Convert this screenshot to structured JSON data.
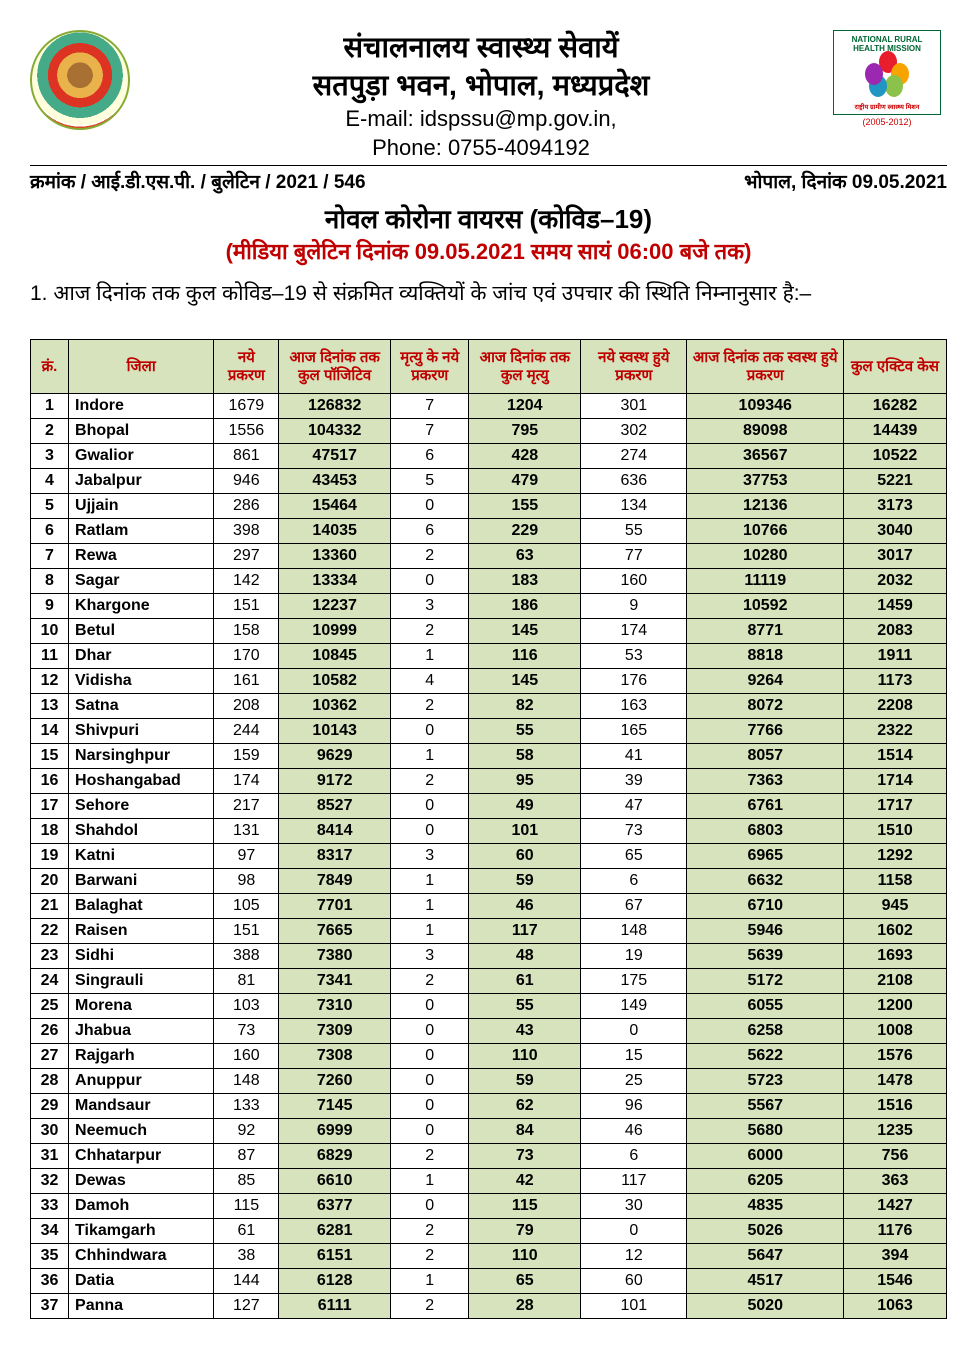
{
  "header": {
    "title_line1": "संचालनालय स्वास्थ्य सेवायें",
    "title_line2": "सतपुड़ा भवन, भोपाल, मध्यप्रदेश",
    "email_label": "E-mail: idspssu@mp.gov.in,",
    "phone_label": "Phone: 0755-4094192",
    "nrhm_arc": "NATIONAL RURAL HEALTH MISSION",
    "nrhm_bottom": "राष्ट्रीय ग्रामीण स्वास्थ्य मिशन",
    "nrhm_year": "(2005-2012)"
  },
  "ref": {
    "left": "क्रमांक / आई.डी.एस.पी. / बुलेटिन / 2021 / 546",
    "right": "भोपाल, दिनांक 09.05.2021"
  },
  "subtitles": {
    "line1": "नोवल कोरोना वायरस (कोविड–19)",
    "line2": "(मीडिया बुलेटिन दिनांक 09.05.2021 समय सायं 06:00 बजे तक)"
  },
  "intro": "1.      आज दिनांक तक कुल कोविड–19 से संक्रमित व्यक्तियों के जांच एवं उपचार की स्थिति निम्नानुसार    है:–",
  "table": {
    "header_bg": "#d6e3bc",
    "header_color": "#c00000",
    "columns": [
      "क्रं.",
      "जिला",
      "नये प्रकरण",
      "आज दिनांक तक कुल पॉजिटिव",
      "मृत्यु के नये प्रकरण",
      "आज दिनांक तक कुल मृत्यु",
      "नये स्वस्थ हुये प्रकरण",
      "आज दिनांक तक स्वस्थ हुये प्रकरण",
      "कुल एक्टिव केस"
    ],
    "rows": [
      {
        "sn": "1",
        "district": "Indore",
        "new": "1679",
        "total": "126832",
        "dnew": "7",
        "dtotal": "1204",
        "recnew": "301",
        "rectotal": "109346",
        "active": "16282"
      },
      {
        "sn": "2",
        "district": "Bhopal",
        "new": "1556",
        "total": "104332",
        "dnew": "7",
        "dtotal": "795",
        "recnew": "302",
        "rectotal": "89098",
        "active": "14439"
      },
      {
        "sn": "3",
        "district": "Gwalior",
        "new": "861",
        "total": "47517",
        "dnew": "6",
        "dtotal": "428",
        "recnew": "274",
        "rectotal": "36567",
        "active": "10522"
      },
      {
        "sn": "4",
        "district": "Jabalpur",
        "new": "946",
        "total": "43453",
        "dnew": "5",
        "dtotal": "479",
        "recnew": "636",
        "rectotal": "37753",
        "active": "5221"
      },
      {
        "sn": "5",
        "district": "Ujjain",
        "new": "286",
        "total": "15464",
        "dnew": "0",
        "dtotal": "155",
        "recnew": "134",
        "rectotal": "12136",
        "active": "3173"
      },
      {
        "sn": "6",
        "district": "Ratlam",
        "new": "398",
        "total": "14035",
        "dnew": "6",
        "dtotal": "229",
        "recnew": "55",
        "rectotal": "10766",
        "active": "3040"
      },
      {
        "sn": "7",
        "district": "Rewa",
        "new": "297",
        "total": "13360",
        "dnew": "2",
        "dtotal": "63",
        "recnew": "77",
        "rectotal": "10280",
        "active": "3017"
      },
      {
        "sn": "8",
        "district": "Sagar",
        "new": "142",
        "total": "13334",
        "dnew": "0",
        "dtotal": "183",
        "recnew": "160",
        "rectotal": "11119",
        "active": "2032"
      },
      {
        "sn": "9",
        "district": "Khargone",
        "new": "151",
        "total": "12237",
        "dnew": "3",
        "dtotal": "186",
        "recnew": "9",
        "rectotal": "10592",
        "active": "1459"
      },
      {
        "sn": "10",
        "district": "Betul",
        "new": "158",
        "total": "10999",
        "dnew": "2",
        "dtotal": "145",
        "recnew": "174",
        "rectotal": "8771",
        "active": "2083"
      },
      {
        "sn": "11",
        "district": "Dhar",
        "new": "170",
        "total": "10845",
        "dnew": "1",
        "dtotal": "116",
        "recnew": "53",
        "rectotal": "8818",
        "active": "1911"
      },
      {
        "sn": "12",
        "district": "Vidisha",
        "new": "161",
        "total": "10582",
        "dnew": "4",
        "dtotal": "145",
        "recnew": "176",
        "rectotal": "9264",
        "active": "1173"
      },
      {
        "sn": "13",
        "district": "Satna",
        "new": "208",
        "total": "10362",
        "dnew": "2",
        "dtotal": "82",
        "recnew": "163",
        "rectotal": "8072",
        "active": "2208"
      },
      {
        "sn": "14",
        "district": "Shivpuri",
        "new": "244",
        "total": "10143",
        "dnew": "0",
        "dtotal": "55",
        "recnew": "165",
        "rectotal": "7766",
        "active": "2322"
      },
      {
        "sn": "15",
        "district": "Narsinghpur",
        "new": "159",
        "total": "9629",
        "dnew": "1",
        "dtotal": "58",
        "recnew": "41",
        "rectotal": "8057",
        "active": "1514"
      },
      {
        "sn": "16",
        "district": "Hoshangabad",
        "new": "174",
        "total": "9172",
        "dnew": "2",
        "dtotal": "95",
        "recnew": "39",
        "rectotal": "7363",
        "active": "1714"
      },
      {
        "sn": "17",
        "district": "Sehore",
        "new": "217",
        "total": "8527",
        "dnew": "0",
        "dtotal": "49",
        "recnew": "47",
        "rectotal": "6761",
        "active": "1717"
      },
      {
        "sn": "18",
        "district": "Shahdol",
        "new": "131",
        "total": "8414",
        "dnew": "0",
        "dtotal": "101",
        "recnew": "73",
        "rectotal": "6803",
        "active": "1510"
      },
      {
        "sn": "19",
        "district": "Katni",
        "new": "97",
        "total": "8317",
        "dnew": "3",
        "dtotal": "60",
        "recnew": "65",
        "rectotal": "6965",
        "active": "1292"
      },
      {
        "sn": "20",
        "district": "Barwani",
        "new": "98",
        "total": "7849",
        "dnew": "1",
        "dtotal": "59",
        "recnew": "6",
        "rectotal": "6632",
        "active": "1158"
      },
      {
        "sn": "21",
        "district": "Balaghat",
        "new": "105",
        "total": "7701",
        "dnew": "1",
        "dtotal": "46",
        "recnew": "67",
        "rectotal": "6710",
        "active": "945"
      },
      {
        "sn": "22",
        "district": "Raisen",
        "new": "151",
        "total": "7665",
        "dnew": "1",
        "dtotal": "117",
        "recnew": "148",
        "rectotal": "5946",
        "active": "1602"
      },
      {
        "sn": "23",
        "district": "Sidhi",
        "new": "388",
        "total": "7380",
        "dnew": "3",
        "dtotal": "48",
        "recnew": "19",
        "rectotal": "5639",
        "active": "1693"
      },
      {
        "sn": "24",
        "district": "Singrauli",
        "new": "81",
        "total": "7341",
        "dnew": "2",
        "dtotal": "61",
        "recnew": "175",
        "rectotal": "5172",
        "active": "2108"
      },
      {
        "sn": "25",
        "district": "Morena",
        "new": "103",
        "total": "7310",
        "dnew": "0",
        "dtotal": "55",
        "recnew": "149",
        "rectotal": "6055",
        "active": "1200"
      },
      {
        "sn": "26",
        "district": "Jhabua",
        "new": "73",
        "total": "7309",
        "dnew": "0",
        "dtotal": "43",
        "recnew": "0",
        "rectotal": "6258",
        "active": "1008"
      },
      {
        "sn": "27",
        "district": "Rajgarh",
        "new": "160",
        "total": "7308",
        "dnew": "0",
        "dtotal": "110",
        "recnew": "15",
        "rectotal": "5622",
        "active": "1576"
      },
      {
        "sn": "28",
        "district": "Anuppur",
        "new": "148",
        "total": "7260",
        "dnew": "0",
        "dtotal": "59",
        "recnew": "25",
        "rectotal": "5723",
        "active": "1478"
      },
      {
        "sn": "29",
        "district": "Mandsaur",
        "new": "133",
        "total": "7145",
        "dnew": "0",
        "dtotal": "62",
        "recnew": "96",
        "rectotal": "5567",
        "active": "1516"
      },
      {
        "sn": "30",
        "district": "Neemuch",
        "new": "92",
        "total": "6999",
        "dnew": "0",
        "dtotal": "84",
        "recnew": "46",
        "rectotal": "5680",
        "active": "1235"
      },
      {
        "sn": "31",
        "district": "Chhatarpur",
        "new": "87",
        "total": "6829",
        "dnew": "2",
        "dtotal": "73",
        "recnew": "6",
        "rectotal": "6000",
        "active": "756"
      },
      {
        "sn": "32",
        "district": "Dewas",
        "new": "85",
        "total": "6610",
        "dnew": "1",
        "dtotal": "42",
        "recnew": "117",
        "rectotal": "6205",
        "active": "363"
      },
      {
        "sn": "33",
        "district": "Damoh",
        "new": "115",
        "total": "6377",
        "dnew": "0",
        "dtotal": "115",
        "recnew": "30",
        "rectotal": "4835",
        "active": "1427"
      },
      {
        "sn": "34",
        "district": "Tikamgarh",
        "new": "61",
        "total": "6281",
        "dnew": "2",
        "dtotal": "79",
        "recnew": "0",
        "rectotal": "5026",
        "active": "1176"
      },
      {
        "sn": "35",
        "district": "Chhindwara",
        "new": "38",
        "total": "6151",
        "dnew": "2",
        "dtotal": "110",
        "recnew": "12",
        "rectotal": "5647",
        "active": "394"
      },
      {
        "sn": "36",
        "district": "Datia",
        "new": "144",
        "total": "6128",
        "dnew": "1",
        "dtotal": "65",
        "recnew": "60",
        "rectotal": "4517",
        "active": "1546"
      },
      {
        "sn": "37",
        "district": "Panna",
        "new": "127",
        "total": "6111",
        "dnew": "2",
        "dtotal": "28",
        "recnew": "101",
        "rectotal": "5020",
        "active": "1063"
      }
    ]
  }
}
